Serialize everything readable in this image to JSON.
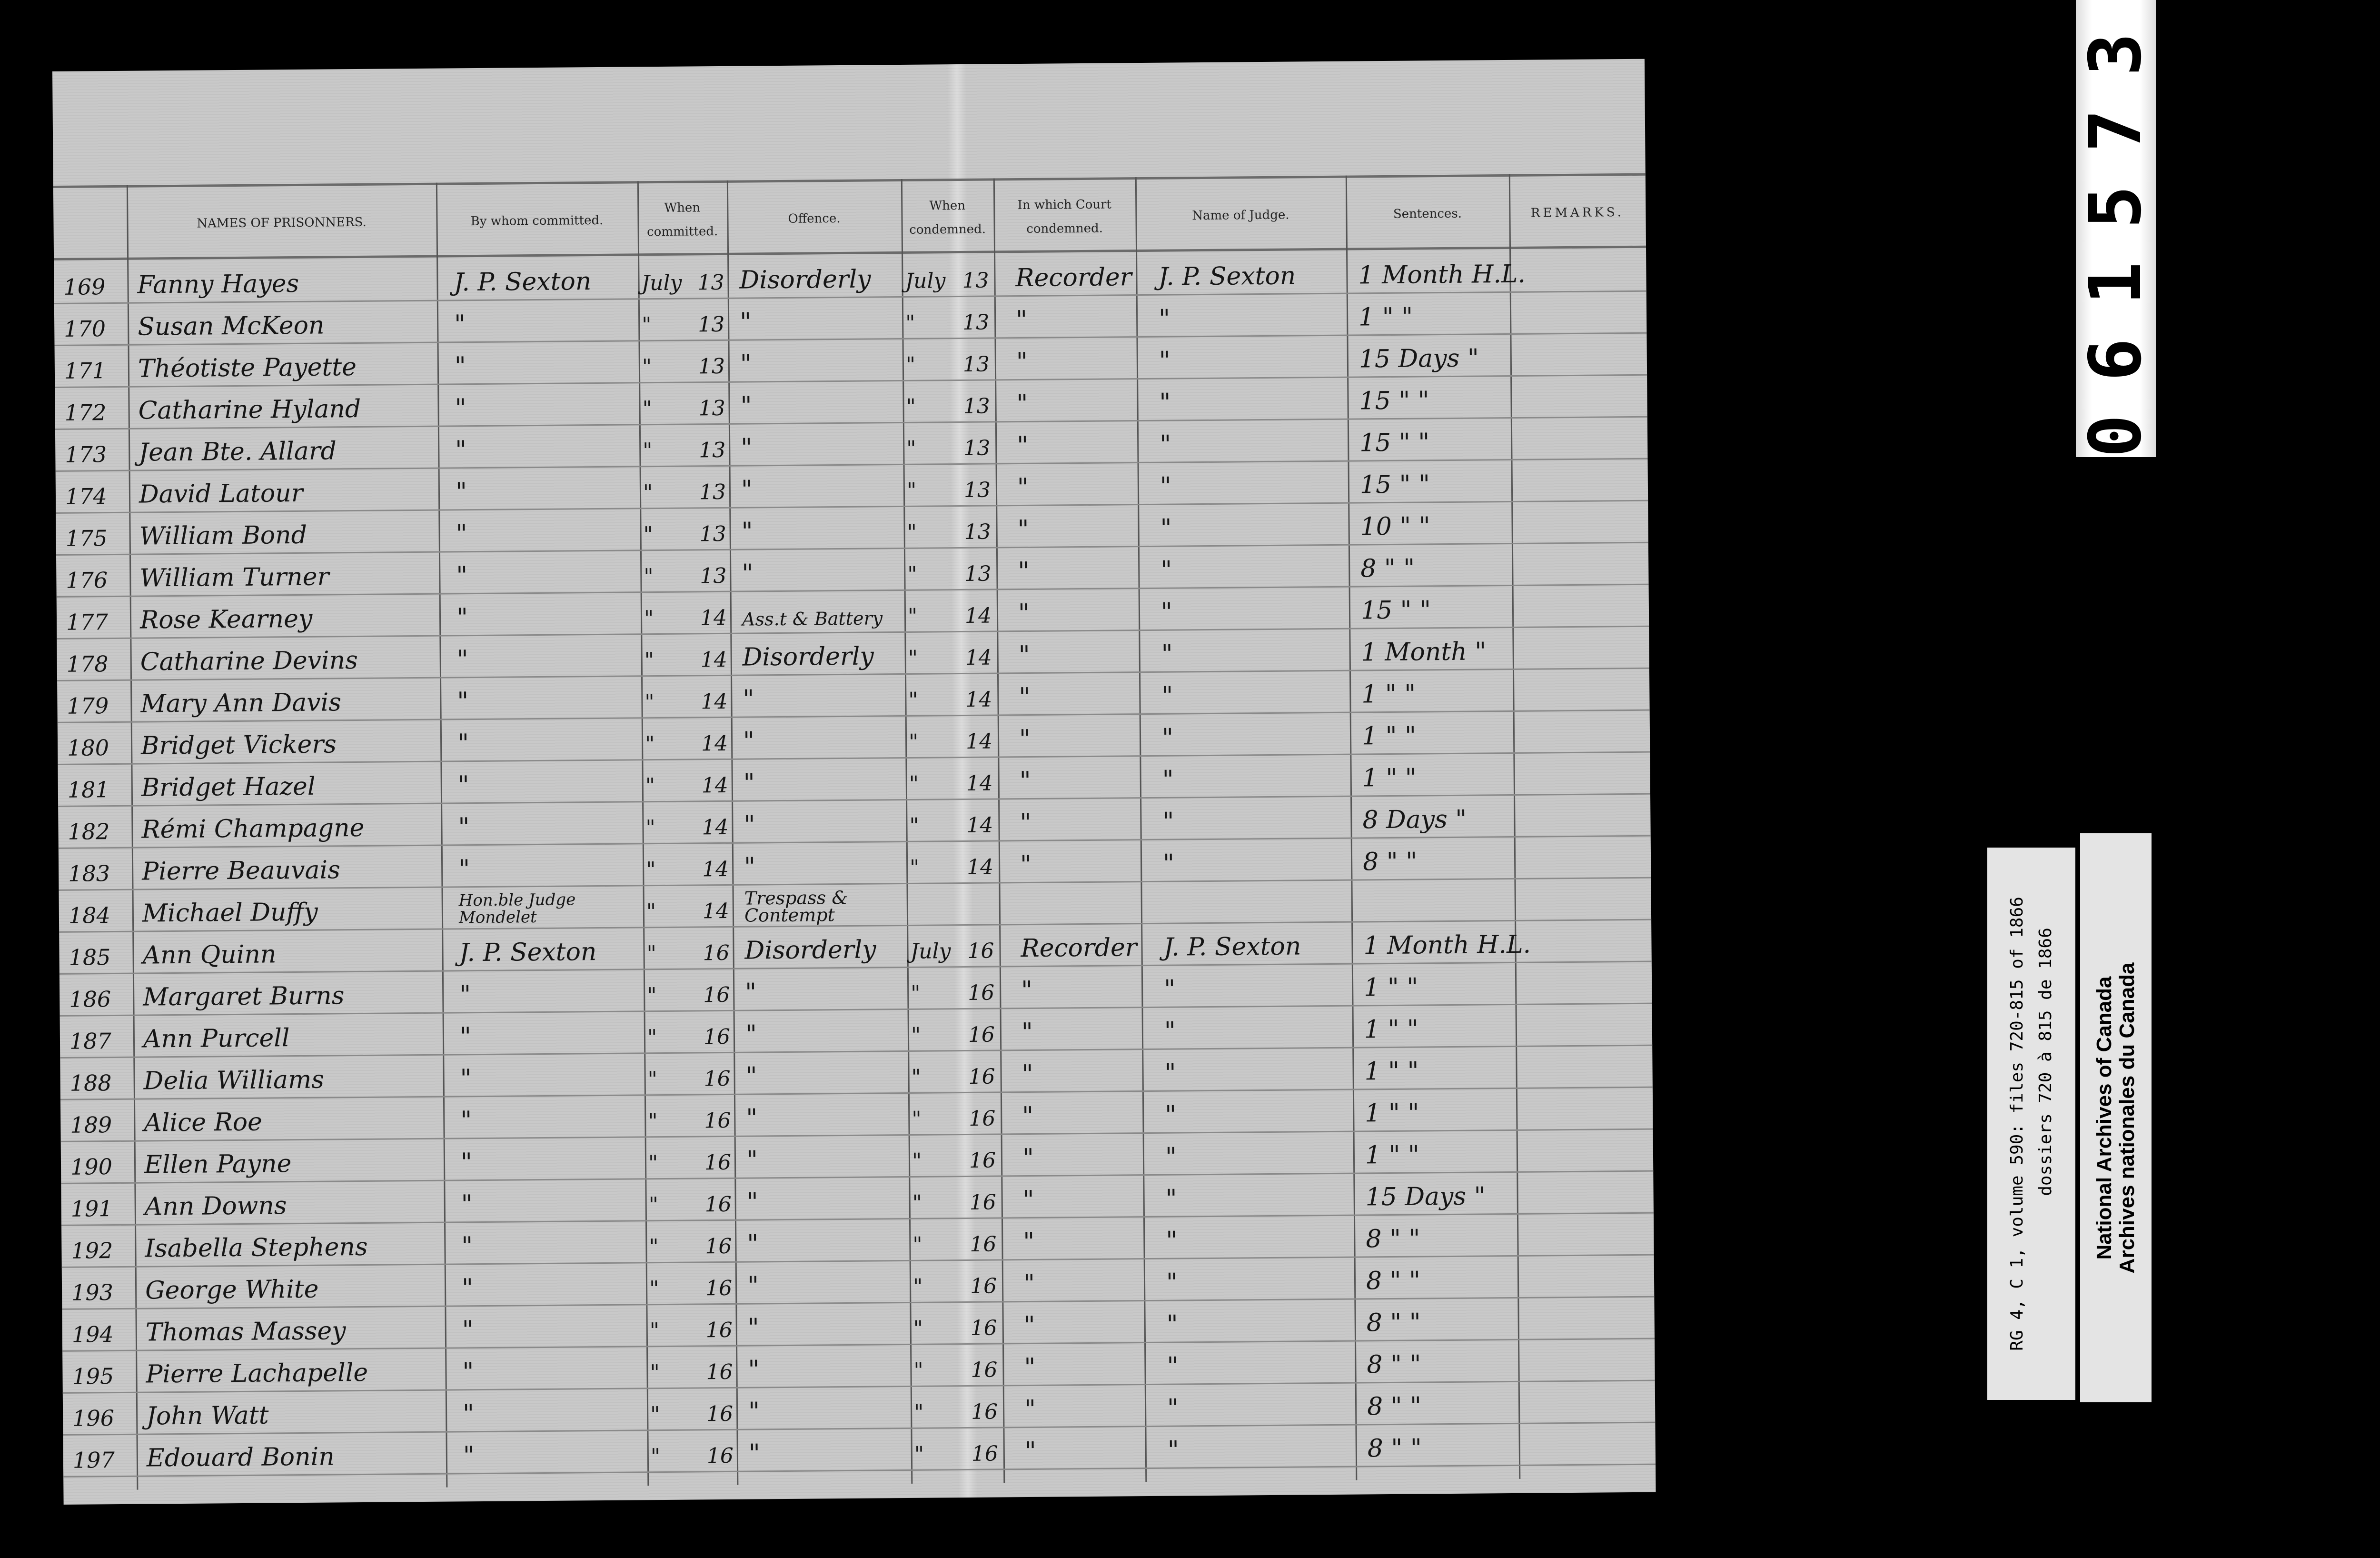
{
  "sheet": {
    "headers": {
      "names": "NAMES OF PRISONNERS.",
      "committed_by": "By whom committed.",
      "when_committed": "When committed.",
      "offence": "Offence.",
      "when_condemned": "When condemned.",
      "court": "In which Court condemned.",
      "judge": "Name of Judge.",
      "sentences": "Sentences.",
      "remarks": "REMARKS."
    },
    "rows": [
      {
        "no": "169",
        "name": "Fanny Hayes",
        "by": "J. P. Sexton",
        "cm": "July",
        "cd": "13",
        "offence": "Disorderly",
        "dm": "July",
        "dd": "13",
        "court": "Recorder",
        "judge": "J. P. Sexton",
        "sentence": "1 Month H.L."
      },
      {
        "no": "170",
        "name": "Susan McKeon",
        "by": "\"",
        "cm": "\"",
        "cd": "13",
        "offence": "\"",
        "dm": "\"",
        "dd": "13",
        "court": "\"",
        "judge": "\"",
        "sentence": "1 \" \""
      },
      {
        "no": "171",
        "name": "Théotiste Payette",
        "by": "\"",
        "cm": "\"",
        "cd": "13",
        "offence": "\"",
        "dm": "\"",
        "dd": "13",
        "court": "\"",
        "judge": "\"",
        "sentence": "15 Days \""
      },
      {
        "no": "172",
        "name": "Catharine Hyland",
        "by": "\"",
        "cm": "\"",
        "cd": "13",
        "offence": "\"",
        "dm": "\"",
        "dd": "13",
        "court": "\"",
        "judge": "\"",
        "sentence": "15 \" \""
      },
      {
        "no": "173",
        "name": "Jean Bte. Allard",
        "by": "\"",
        "cm": "\"",
        "cd": "13",
        "offence": "\"",
        "dm": "\"",
        "dd": "13",
        "court": "\"",
        "judge": "\"",
        "sentence": "15 \" \""
      },
      {
        "no": "174",
        "name": "David Latour",
        "by": "\"",
        "cm": "\"",
        "cd": "13",
        "offence": "\"",
        "dm": "\"",
        "dd": "13",
        "court": "\"",
        "judge": "\"",
        "sentence": "15 \" \""
      },
      {
        "no": "175",
        "name": "William Bond",
        "by": "\"",
        "cm": "\"",
        "cd": "13",
        "offence": "\"",
        "dm": "\"",
        "dd": "13",
        "court": "\"",
        "judge": "\"",
        "sentence": "10 \" \""
      },
      {
        "no": "176",
        "name": "William Turner",
        "by": "\"",
        "cm": "\"",
        "cd": "13",
        "offence": "\"",
        "dm": "\"",
        "dd": "13",
        "court": "\"",
        "judge": "\"",
        "sentence": "8 \" \""
      },
      {
        "no": "177",
        "name": "Rose Kearney",
        "by": "\"",
        "cm": "\"",
        "cd": "14",
        "offence": "Ass.t & Battery",
        "dm": "\"",
        "dd": "14",
        "court": "\"",
        "judge": "\"",
        "sentence": "15 \" \""
      },
      {
        "no": "178",
        "name": "Catharine Devins",
        "by": "\"",
        "cm": "\"",
        "cd": "14",
        "offence": "Disorderly",
        "dm": "\"",
        "dd": "14",
        "court": "\"",
        "judge": "\"",
        "sentence": "1 Month \""
      },
      {
        "no": "179",
        "name": "Mary Ann Davis",
        "by": "\"",
        "cm": "\"",
        "cd": "14",
        "offence": "\"",
        "dm": "\"",
        "dd": "14",
        "court": "\"",
        "judge": "\"",
        "sentence": "1 \" \""
      },
      {
        "no": "180",
        "name": "Bridget Vickers",
        "by": "\"",
        "cm": "\"",
        "cd": "14",
        "offence": "\"",
        "dm": "\"",
        "dd": "14",
        "court": "\"",
        "judge": "\"",
        "sentence": "1 \" \""
      },
      {
        "no": "181",
        "name": "Bridget Hazel",
        "by": "\"",
        "cm": "\"",
        "cd": "14",
        "offence": "\"",
        "dm": "\"",
        "dd": "14",
        "court": "\"",
        "judge": "\"",
        "sentence": "1 \" \""
      },
      {
        "no": "182",
        "name": "Rémi Champagne",
        "by": "\"",
        "cm": "\"",
        "cd": "14",
        "offence": "\"",
        "dm": "\"",
        "dd": "14",
        "court": "\"",
        "judge": "\"",
        "sentence": "8 Days \""
      },
      {
        "no": "183",
        "name": "Pierre Beauvais",
        "by": "\"",
        "cm": "\"",
        "cd": "14",
        "offence": "\"",
        "dm": "\"",
        "dd": "14",
        "court": "\"",
        "judge": "\"",
        "sentence": "8 \" \""
      },
      {
        "no": "184",
        "name": "Michael Duffy",
        "by": "Hon.ble Judge Mondelet",
        "cm": "\"",
        "cd": "14",
        "offence": "Trespass & Contempt",
        "dm": "",
        "dd": "",
        "court": "",
        "judge": "",
        "sentence": ""
      },
      {
        "no": "185",
        "name": "Ann Quinn",
        "by": "J. P. Sexton",
        "cm": "\"",
        "cd": "16",
        "offence": "Disorderly",
        "dm": "July",
        "dd": "16",
        "court": "Recorder",
        "judge": "J. P. Sexton",
        "sentence": "1 Month H.L."
      },
      {
        "no": "186",
        "name": "Margaret Burns",
        "by": "\"",
        "cm": "\"",
        "cd": "16",
        "offence": "\"",
        "dm": "\"",
        "dd": "16",
        "court": "\"",
        "judge": "\"",
        "sentence": "1 \" \""
      },
      {
        "no": "187",
        "name": "Ann Purcell",
        "by": "\"",
        "cm": "\"",
        "cd": "16",
        "offence": "\"",
        "dm": "\"",
        "dd": "16",
        "court": "\"",
        "judge": "\"",
        "sentence": "1 \" \""
      },
      {
        "no": "188",
        "name": "Delia Williams",
        "by": "\"",
        "cm": "\"",
        "cd": "16",
        "offence": "\"",
        "dm": "\"",
        "dd": "16",
        "court": "\"",
        "judge": "\"",
        "sentence": "1 \" \""
      },
      {
        "no": "189",
        "name": "Alice Roe",
        "by": "\"",
        "cm": "\"",
        "cd": "16",
        "offence": "\"",
        "dm": "\"",
        "dd": "16",
        "court": "\"",
        "judge": "\"",
        "sentence": "1 \" \""
      },
      {
        "no": "190",
        "name": "Ellen Payne",
        "by": "\"",
        "cm": "\"",
        "cd": "16",
        "offence": "\"",
        "dm": "\"",
        "dd": "16",
        "court": "\"",
        "judge": "\"",
        "sentence": "1 \" \""
      },
      {
        "no": "191",
        "name": "Ann Downs",
        "by": "\"",
        "cm": "\"",
        "cd": "16",
        "offence": "\"",
        "dm": "\"",
        "dd": "16",
        "court": "\"",
        "judge": "\"",
        "sentence": "15 Days \""
      },
      {
        "no": "192",
        "name": "Isabella Stephens",
        "by": "\"",
        "cm": "\"",
        "cd": "16",
        "offence": "\"",
        "dm": "\"",
        "dd": "16",
        "court": "\"",
        "judge": "\"",
        "sentence": "8 \" \""
      },
      {
        "no": "193",
        "name": "George White",
        "by": "\"",
        "cm": "\"",
        "cd": "16",
        "offence": "\"",
        "dm": "\"",
        "dd": "16",
        "court": "\"",
        "judge": "\"",
        "sentence": "8 \" \""
      },
      {
        "no": "194",
        "name": "Thomas Massey",
        "by": "\"",
        "cm": "\"",
        "cd": "16",
        "offence": "\"",
        "dm": "\"",
        "dd": "16",
        "court": "\"",
        "judge": "\"",
        "sentence": "8 \" \""
      },
      {
        "no": "195",
        "name": "Pierre Lachapelle",
        "by": "\"",
        "cm": "\"",
        "cd": "16",
        "offence": "\"",
        "dm": "\"",
        "dd": "16",
        "court": "\"",
        "judge": "\"",
        "sentence": "8 \" \""
      },
      {
        "no": "196",
        "name": "John Watt",
        "by": "\"",
        "cm": "\"",
        "cd": "16",
        "offence": "\"",
        "dm": "\"",
        "dd": "16",
        "court": "\"",
        "judge": "\"",
        "sentence": "8 \" \""
      },
      {
        "no": "197",
        "name": "Edouard Bonin",
        "by": "\"",
        "cm": "\"",
        "cd": "16",
        "offence": "\"",
        "dm": "\"",
        "dd": "16",
        "court": "\"",
        "judge": "\"",
        "sentence": "8 \" \""
      }
    ]
  },
  "frame_number": "061573",
  "reference_label": {
    "line1": "RG 4, C 1, volume 590: files 720-815 of 1866",
    "line2": "dossiers 720 à 815 de 1866"
  },
  "archive_label": {
    "line1": "National Archives of Canada",
    "line2": "Archives nationales du Canada"
  }
}
